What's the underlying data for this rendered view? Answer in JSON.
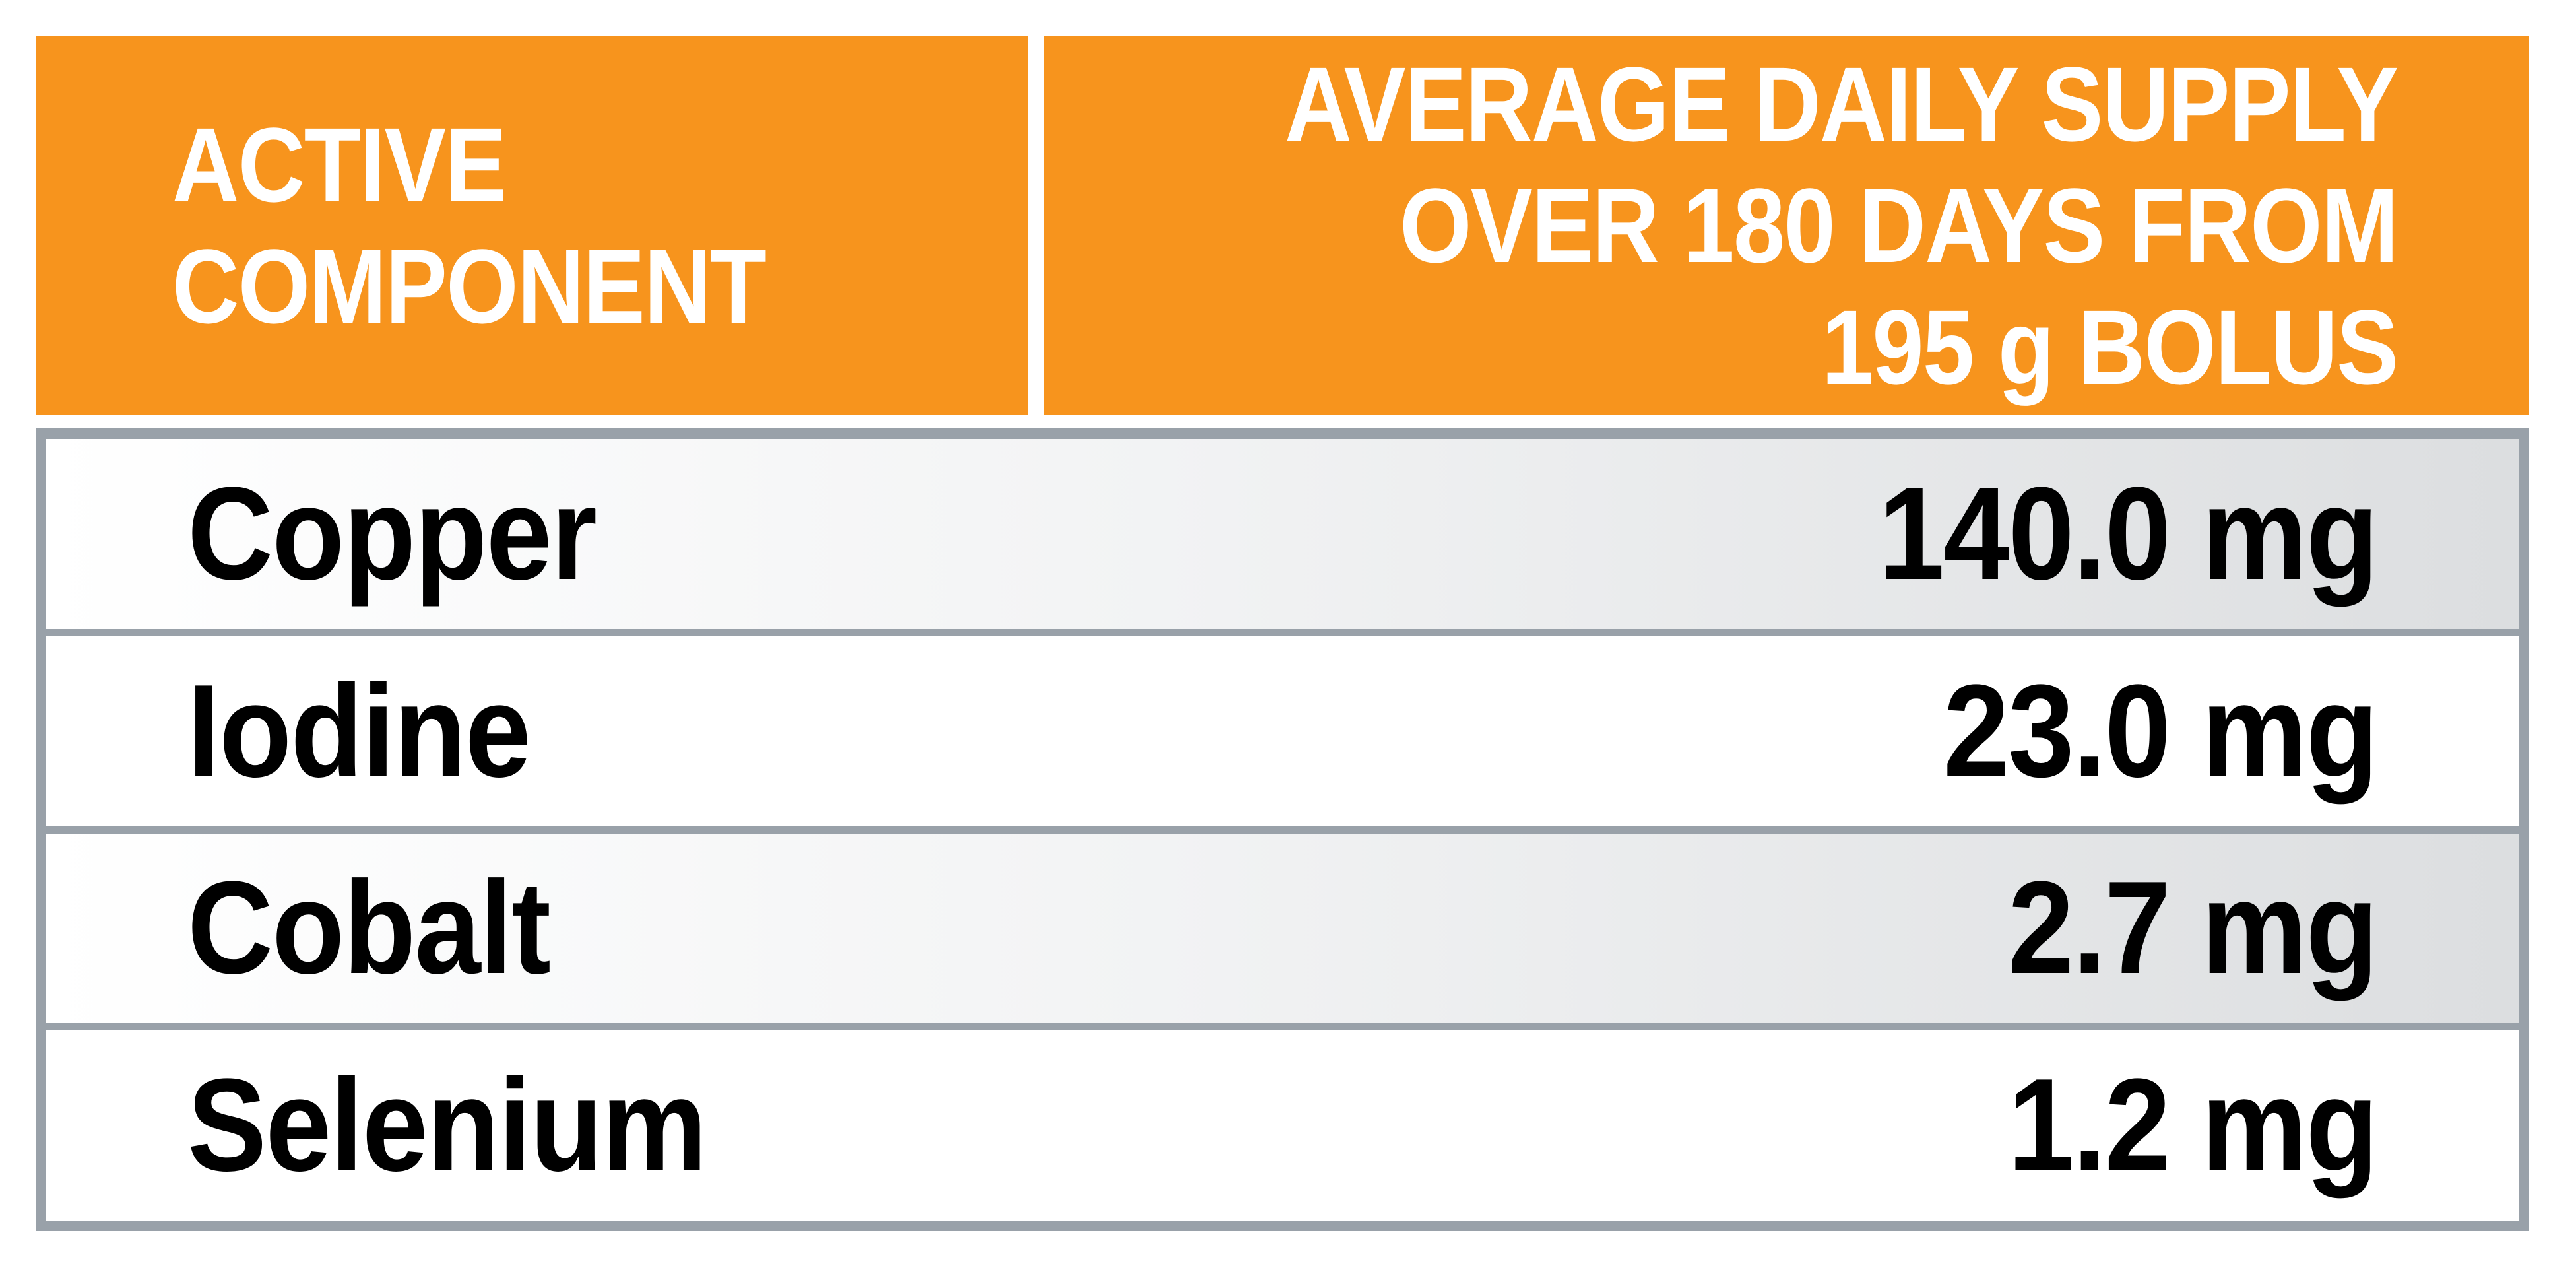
{
  "chart_data": {
    "type": "table",
    "title": "",
    "columns": [
      "ACTIVE COMPONENT",
      "AVERAGE DAILY SUPPLY OVER 180 DAYS FROM 195 g BOLUS"
    ],
    "rows": [
      [
        "Copper",
        "140.0 mg"
      ],
      [
        "Iodine",
        "23.0 mg"
      ],
      [
        "Cobalt",
        "2.7 mg"
      ],
      [
        "Selenium",
        "1.2 mg"
      ]
    ],
    "values_mg": {
      "Copper": 140.0,
      "Iodine": 23.0,
      "Cobalt": 2.7,
      "Selenium": 1.2
    },
    "unit": "mg",
    "duration_days": 180,
    "bolus_mass": "195 g"
  },
  "header": {
    "left_lines": [
      "ACTIVE",
      "COMPONENT"
    ],
    "right_lines": [
      "AVERAGE DAILY SUPPLY",
      "OVER 180 DAYS FROM",
      "195 g BOLUS"
    ]
  },
  "rows": [
    {
      "component": "Copper",
      "value": "140.0 mg"
    },
    {
      "component": "Iodine",
      "value": "23.0 mg"
    },
    {
      "component": "Cobalt",
      "value": "2.7 mg"
    },
    {
      "component": "Selenium",
      "value": "1.2 mg"
    }
  ],
  "colors": {
    "header_bg": "#F7941D",
    "header_text": "#FFFFFF",
    "table_border": "#99A1A9",
    "row_divider": "#99A1A9",
    "row_shade_start": "#FFFFFF",
    "row_shade_end": "#DCDEE0",
    "row_text": "#000000",
    "page_bg": "#FFFFFF"
  }
}
